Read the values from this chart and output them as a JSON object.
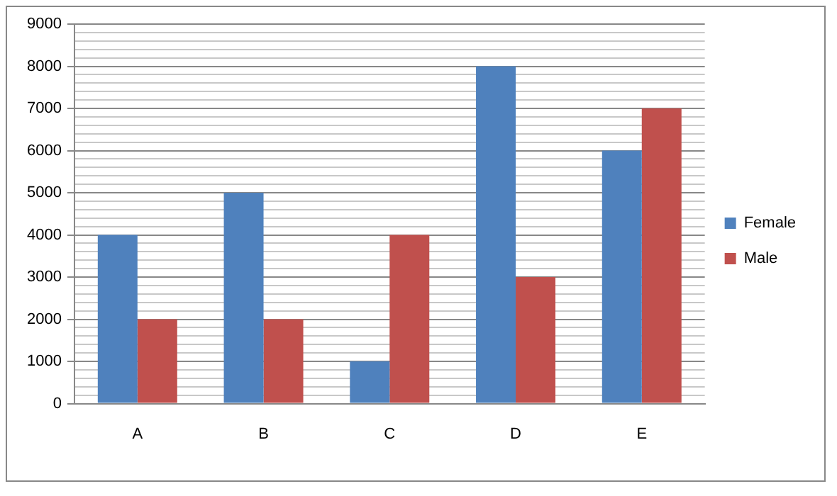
{
  "chart_data": {
    "type": "bar",
    "categories": [
      "A",
      "B",
      "C",
      "D",
      "E"
    ],
    "series": [
      {
        "name": "Female",
        "color": "#4f81bd",
        "values": [
          4000,
          5000,
          1000,
          8000,
          6000
        ]
      },
      {
        "name": "Male",
        "color": "#c0504d",
        "values": [
          2000,
          2000,
          4000,
          3000,
          7000
        ]
      }
    ],
    "ylim": [
      0,
      9000
    ],
    "yticks": [
      0,
      {
        "value": 200,
        "label": null
      },
      {
        "value": 400,
        "label": null
      },
      {
        "value": 600,
        "label": null
      },
      {
        "value": 800,
        "label": null
      },
      1000,
      {
        "value": 1200,
        "label": null
      },
      {
        "value": 1400,
        "label": null
      },
      {
        "value": 1600,
        "label": null
      },
      {
        "value": 1800,
        "label": null
      },
      2000,
      {
        "value": 2200,
        "label": null
      },
      {
        "value": 2400,
        "label": null
      },
      {
        "value": 2600,
        "label": null
      },
      {
        "value": 2800,
        "label": null
      },
      3000,
      {
        "value": 3200,
        "label": null
      },
      {
        "value": 3400,
        "label": null
      },
      {
        "value": 3600,
        "label": null
      },
      {
        "value": 3800,
        "label": null
      },
      4000,
      {
        "value": 4200,
        "label": null
      },
      {
        "value": 4400,
        "label": null
      },
      {
        "value": 4600,
        "label": null
      },
      {
        "value": 4800,
        "label": null
      },
      5000,
      {
        "value": 5200,
        "label": null
      },
      {
        "value": 5400,
        "label": null
      },
      {
        "value": 5600,
        "label": null
      },
      {
        "value": 5800,
        "label": null
      },
      6000,
      {
        "value": 6200,
        "label": null
      },
      {
        "value": 6400,
        "label": null
      },
      {
        "value": 6600,
        "label": null
      },
      {
        "value": 6800,
        "label": null
      },
      7000,
      {
        "value": 7200,
        "label": null
      },
      {
        "value": 7400,
        "label": null
      },
      {
        "value": 7600,
        "label": null
      },
      {
        "value": 7800,
        "label": null
      },
      8000,
      {
        "value": 8200,
        "label": null
      },
      {
        "value": 8400,
        "label": null
      },
      {
        "value": 8600,
        "label": null
      },
      {
        "value": 8800,
        "label": null
      },
      9000
    ],
    "grid": "y",
    "legend": "right"
  }
}
